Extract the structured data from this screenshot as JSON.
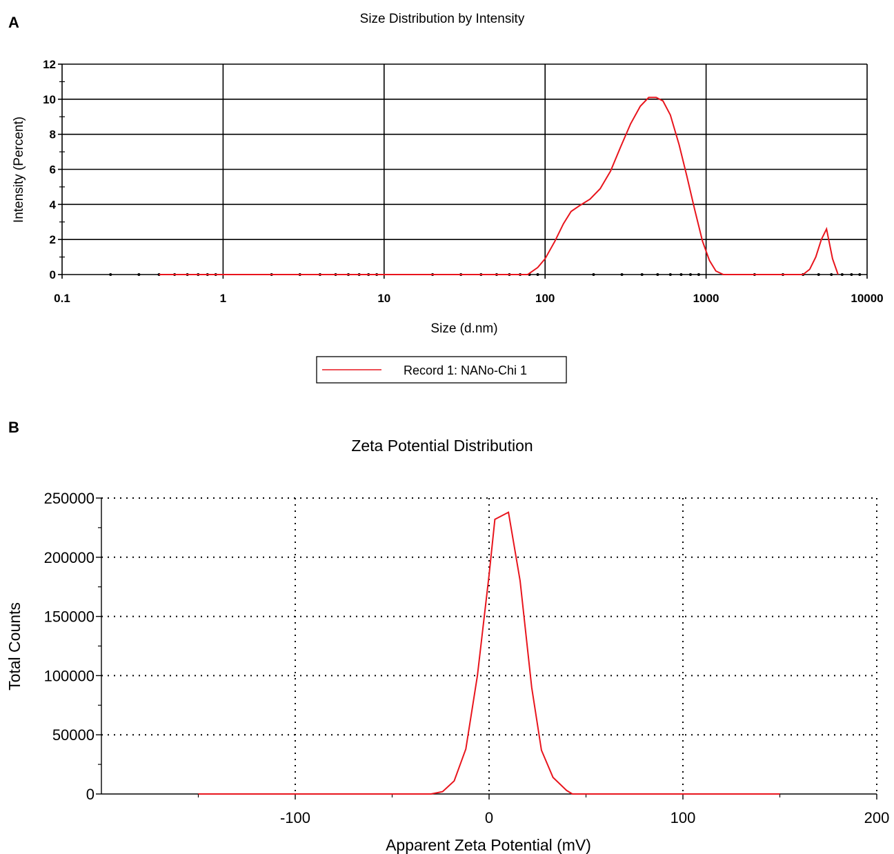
{
  "figure": {
    "panel_a_letter": "A",
    "panel_b_letter": "B"
  },
  "chart_data": [
    {
      "type": "line",
      "title": "Size Distribution by Intensity",
      "xlabel": "Size (d.nm)",
      "ylabel": "Intensity (Percent)",
      "xscale": "log",
      "xlim": [
        0.1,
        10000
      ],
      "ylim": [
        0,
        12
      ],
      "xticks": [
        0.1,
        1,
        10,
        100,
        1000,
        10000
      ],
      "xtick_labels": [
        "0.1",
        "1",
        "10",
        "100",
        "1000",
        "10000"
      ],
      "yticks": [
        0,
        2,
        4,
        6,
        8,
        10,
        12
      ],
      "ytick_labels": [
        "0",
        "2",
        "4",
        "6",
        "8",
        "10",
        "12"
      ],
      "grid": true,
      "legend": "bottom-center",
      "colors": {
        "series": "#e8141c"
      },
      "series": [
        {
          "name": "Record 1: NANo-Chi 1",
          "x": [
            0.4,
            1,
            10,
            50,
            78,
            90,
            100,
            115,
            130,
            145,
            165,
            190,
            220,
            255,
            295,
            340,
            390,
            440,
            490,
            540,
            600,
            680,
            760,
            850,
            950,
            1050,
            1150,
            1280,
            2000,
            4000,
            4400,
            4800,
            5200,
            5600,
            6100,
            6600
          ],
          "y": [
            0,
            0,
            0,
            0,
            0,
            0.4,
            0.9,
            1.9,
            2.9,
            3.6,
            3.95,
            4.3,
            4.9,
            5.9,
            7.3,
            8.6,
            9.6,
            10.1,
            10.1,
            9.9,
            9.1,
            7.4,
            5.6,
            3.7,
            1.9,
            0.8,
            0.2,
            0,
            0,
            0,
            0.3,
            1.0,
            2.0,
            2.6,
            0.9,
            0
          ]
        }
      ]
    },
    {
      "type": "line",
      "title": "Zeta Potential Distribution",
      "xlabel": "Apparent Zeta Potential (mV)",
      "ylabel": "Total Counts",
      "xlim": [
        -200,
        200
      ],
      "ylim": [
        0,
        250000
      ],
      "xticks": [
        -100,
        0,
        100,
        200
      ],
      "xtick_labels": [
        "-100",
        "0",
        "100",
        "200"
      ],
      "yticks": [
        0,
        50000,
        100000,
        150000,
        200000,
        250000
      ],
      "ytick_labels": [
        "0",
        "50000",
        "100000",
        "150000",
        "200000",
        "250000"
      ],
      "grid": true,
      "colors": {
        "series": "#e8141c"
      },
      "series": [
        {
          "x": [
            -150,
            -30,
            -24,
            -18,
            -12,
            -6,
            0,
            3,
            10,
            16,
            22,
            27,
            33,
            40,
            43,
            150
          ],
          "y": [
            0,
            0,
            2000,
            11000,
            38000,
            100000,
            185000,
            232000,
            238000,
            180000,
            90000,
            37000,
            14000,
            3000,
            0,
            0
          ]
        }
      ]
    }
  ]
}
